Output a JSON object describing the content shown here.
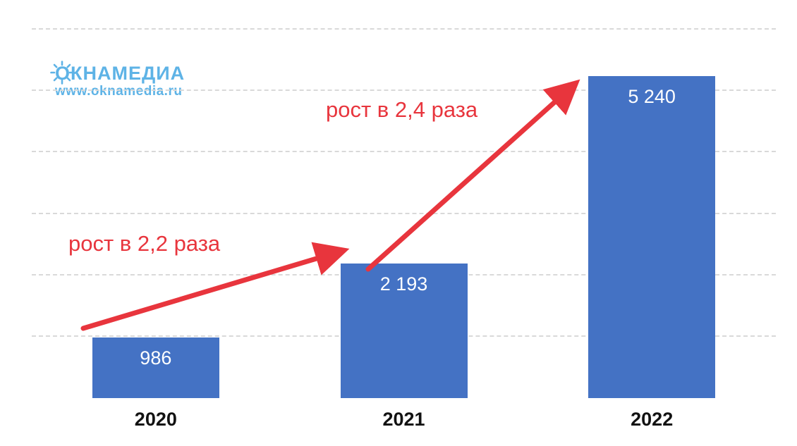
{
  "logo": {
    "wordmark": "ОКНАМЕДИА",
    "website": "www.oknamedia.ru"
  },
  "colors": {
    "bar": "#4472c4",
    "arrow": "#e8353d",
    "logo": "#5eb3e6",
    "grid": "#d9d9d9",
    "bar_label": "#ffffff",
    "axis_label": "#121212"
  },
  "chart_data": {
    "type": "bar",
    "categories": [
      "2020",
      "2021",
      "2022"
    ],
    "values": [
      986,
      2193,
      5240
    ],
    "value_labels": [
      "986",
      "2 193",
      "5 240"
    ],
    "title": "",
    "xlabel": "",
    "ylabel": "",
    "ylim": [
      0,
      6000
    ],
    "gridline_step": 1000,
    "grid": "dashed horizontal",
    "legend": "none",
    "annotations": [
      {
        "text": "рост в 2,2 раза",
        "from_category": "2020",
        "to_category": "2021"
      },
      {
        "text": "рост в 2,4 раза",
        "from_category": "2021",
        "to_category": "2022"
      }
    ]
  }
}
